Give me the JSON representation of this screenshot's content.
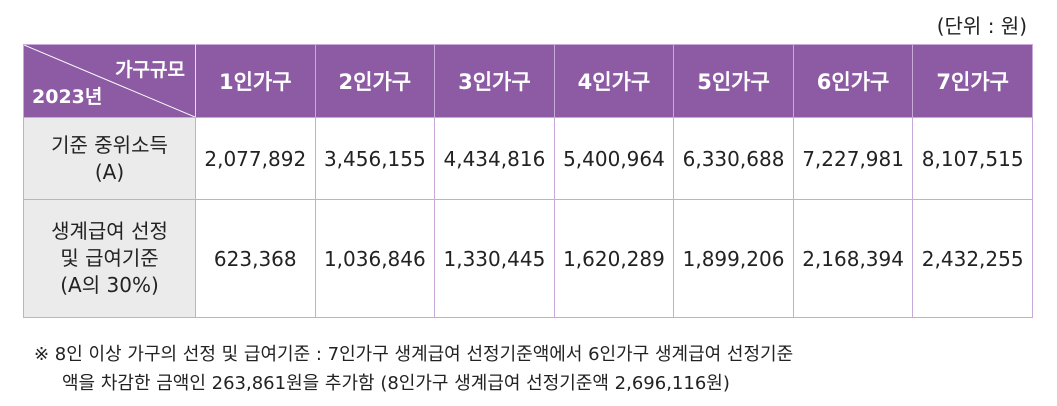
{
  "unit_label": "(단위 : 원)",
  "table": {
    "corner_top": "가구규모",
    "corner_bottom": "2023년",
    "columns": [
      "1인가구",
      "2인가구",
      "3인가구",
      "4인가구",
      "5인가구",
      "6인가구",
      "7인가구"
    ],
    "rows": [
      {
        "label_lines": [
          "기준 중위소득",
          "(A)"
        ],
        "values": [
          "2,077,892",
          "3,456,155",
          "4,434,816",
          "5,400,964",
          "6,330,688",
          "7,227,981",
          "8,107,515"
        ]
      },
      {
        "label_lines": [
          "생계급여 선정",
          "및 급여기준",
          "(A의 30%)"
        ],
        "values": [
          "623,368",
          "1,036,846",
          "1,330,445",
          "1,620,289",
          "1,899,206",
          "2,168,394",
          "2,432,255"
        ]
      }
    ]
  },
  "note": {
    "line1": "※ 8인 이상 가구의 선정 및 급여기준 : 7인가구 생계급여 선정기준액에서 6인가구 생계급여 선정기준",
    "line2": "액을 차감한 금액인 263,861원을 추가함 (8인가구 생계급여 선정기준액 2,696,116원)"
  },
  "colors": {
    "header_bg": "#8d5ba3",
    "row_label_bg": "#ebebeb",
    "border": "#c9a9d9"
  }
}
